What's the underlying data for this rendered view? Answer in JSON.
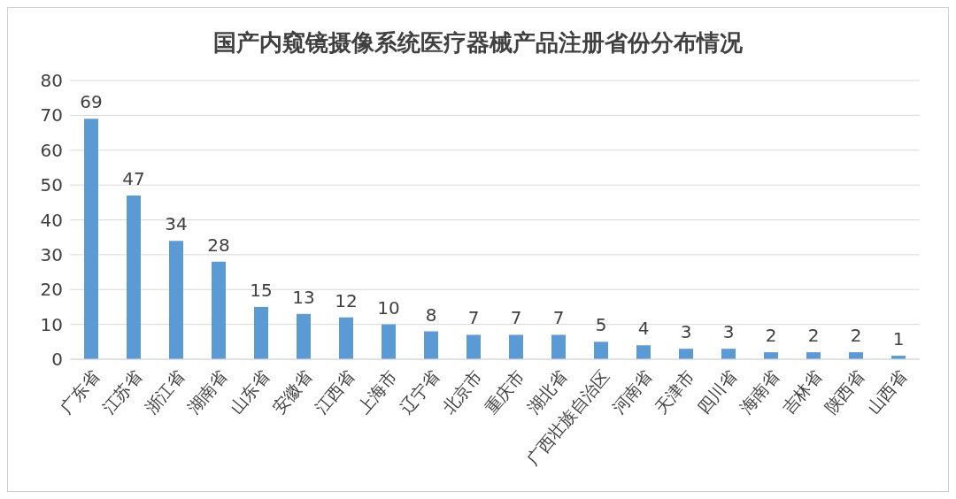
{
  "chart_data": {
    "type": "bar",
    "title": "国产内窥镜摄像系统医疗器械产品注册省份分布情况",
    "categories": [
      "广东省",
      "江苏省",
      "浙江省",
      "湖南省",
      "山东省",
      "安徽省",
      "江西省",
      "上海市",
      "辽宁省",
      "北京市",
      "重庆市",
      "湖北省",
      "广西壮族自治区",
      "河南省",
      "天津市",
      "四川省",
      "海南省",
      "吉林省",
      "陕西省",
      "山西省"
    ],
    "values": [
      69,
      47,
      34,
      28,
      15,
      13,
      12,
      10,
      8,
      7,
      7,
      7,
      5,
      4,
      3,
      3,
      2,
      2,
      2,
      1
    ],
    "color": "#5b9bd5",
    "ylim": [
      0,
      80
    ],
    "yticks": [
      0,
      10,
      20,
      30,
      40,
      50,
      60,
      70,
      80
    ],
    "grid": "y",
    "data_labels": true
  }
}
